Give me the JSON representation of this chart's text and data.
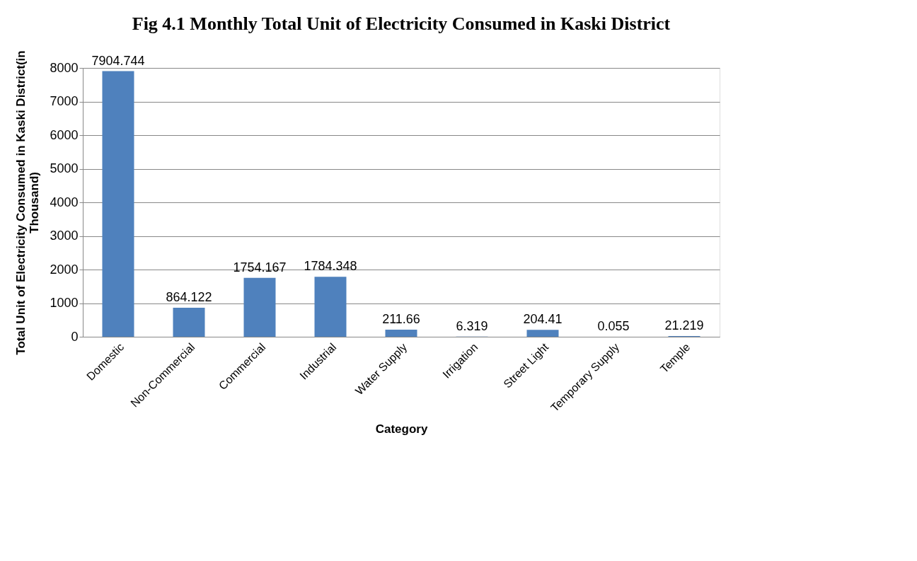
{
  "chart_data": {
    "type": "bar",
    "title": "Fig 4.1 Monthly Total Unit of Electricity Consumed in Kaski District",
    "xlabel": "Category",
    "ylabel": "Total Unit of Electricity Consumed in Kaski District(in Thousand)",
    "categories": [
      "Domestic",
      "Non-Commercial",
      "Commercial",
      "Industrial",
      "Water Supply",
      "Irrigation",
      "Street Light",
      "Temporary Supply",
      "Temple"
    ],
    "values": [
      7904.744,
      864.122,
      1754.167,
      1784.348,
      211.66,
      6.319,
      204.41,
      0.055,
      21.219
    ],
    "color": "#4f81bd",
    "data_labels": true,
    "ylim": [
      0,
      8000
    ],
    "yticks": [
      0,
      1000,
      2000,
      3000,
      4000,
      5000,
      6000,
      7000,
      8000
    ],
    "grid": "y"
  }
}
